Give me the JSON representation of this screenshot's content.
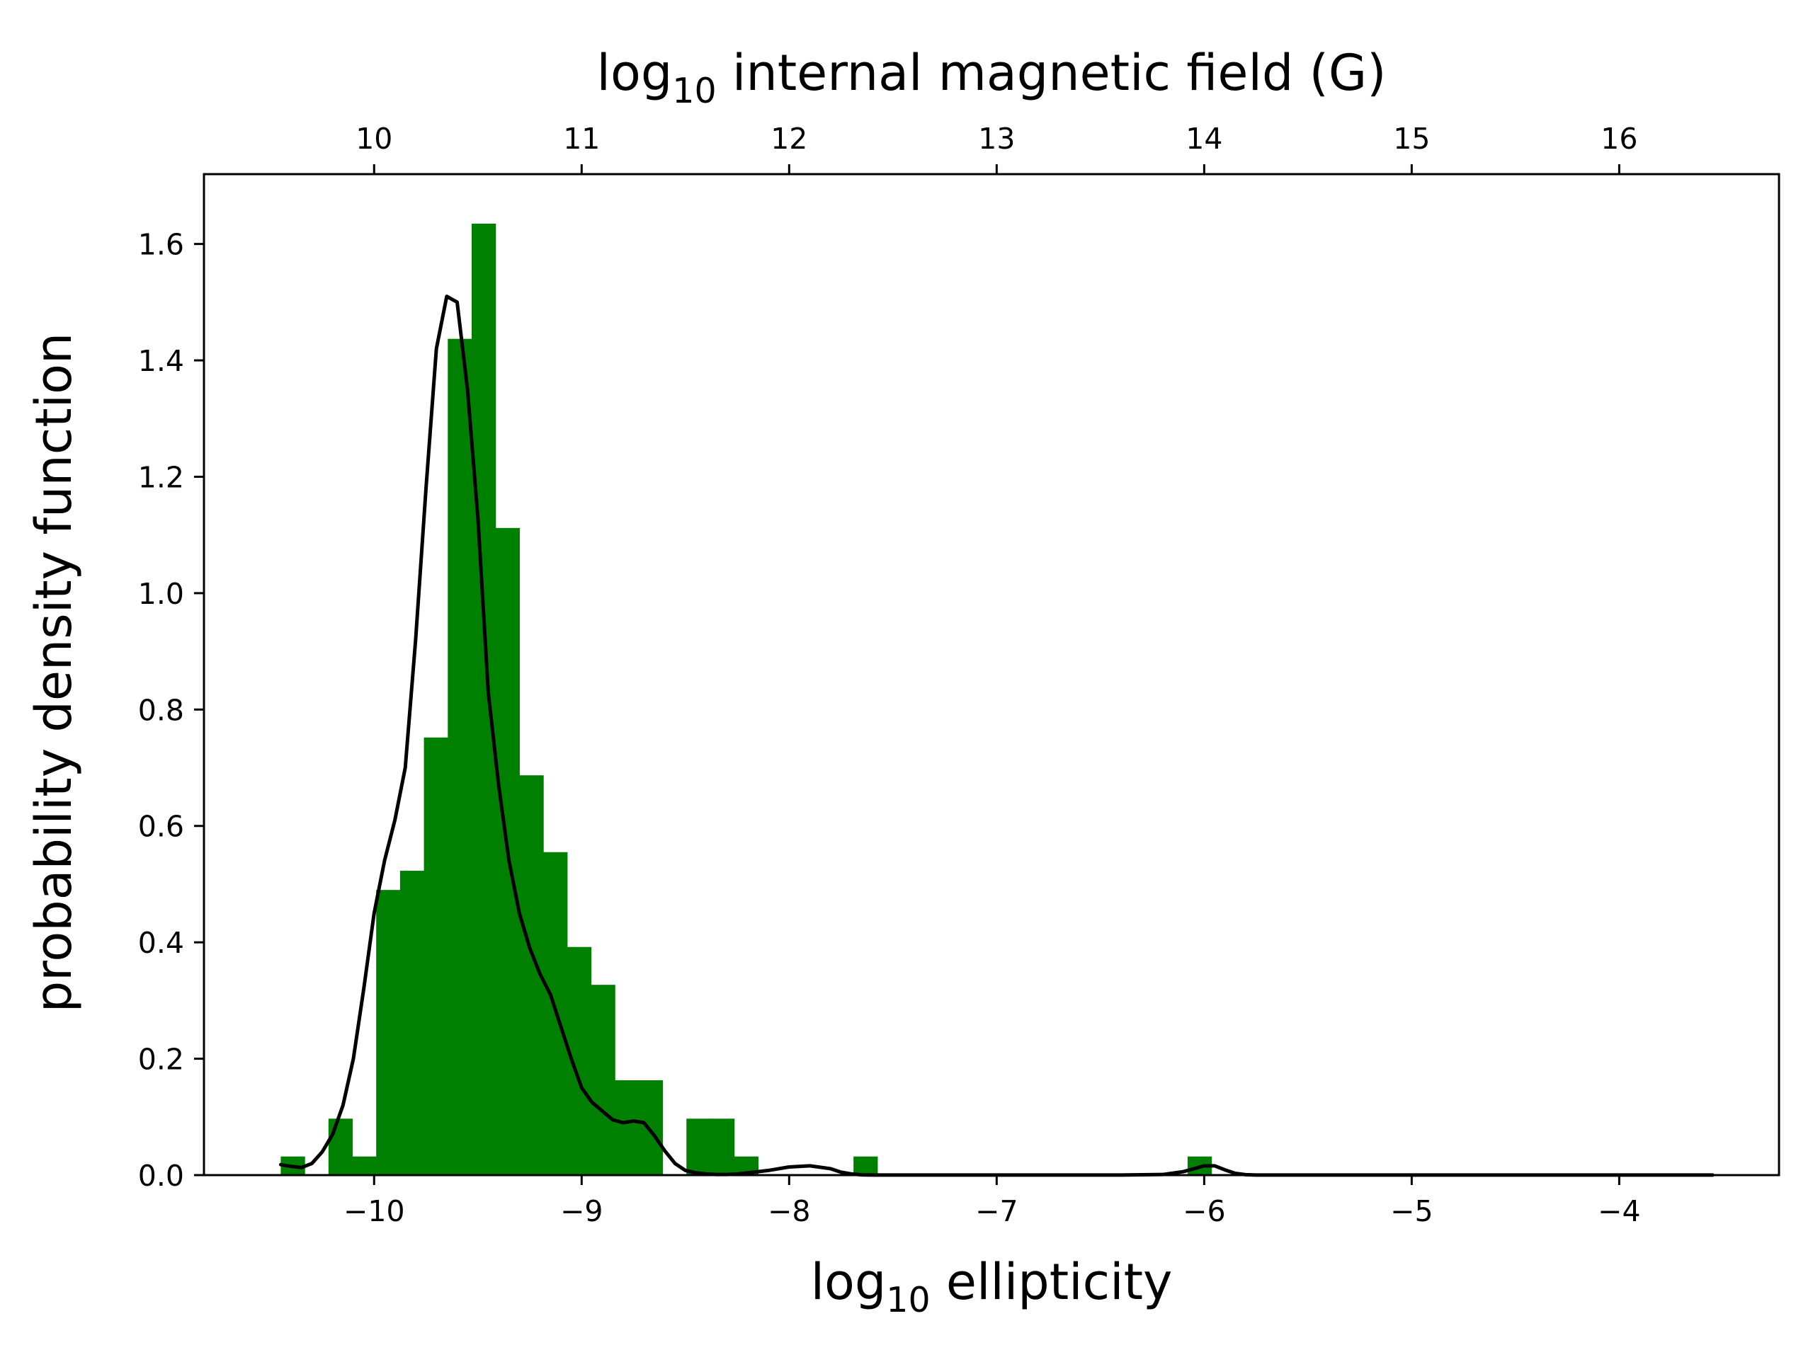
{
  "chart_data": {
    "type": "bar",
    "subtype": "histogram-with-kde",
    "xlabel": {
      "prefix": "log",
      "subscript": "10",
      "text": " ellipticity"
    },
    "ylabel": "probability density function",
    "x2label": {
      "prefix": "log",
      "subscript": "10",
      "text": " internal magnetic field (G)"
    },
    "xlim": [
      -10.82,
      -3.23
    ],
    "ylim": [
      0,
      1.72
    ],
    "x2_range": [
      9.18,
      16.77
    ],
    "x_ticks": [
      -10,
      -9,
      -8,
      -7,
      -6,
      -5,
      -4
    ],
    "x_tick_labels": [
      "−10",
      "−9",
      "−8",
      "−7",
      "−6",
      "−5",
      "−4"
    ],
    "x2_ticks": [
      10,
      11,
      12,
      13,
      14,
      15,
      16
    ],
    "x2_tick_labels": [
      "10",
      "11",
      "12",
      "13",
      "14",
      "15",
      "16"
    ],
    "y_ticks": [
      0.0,
      0.2,
      0.4,
      0.6,
      0.8,
      1.0,
      1.2,
      1.4,
      1.6
    ],
    "y_tick_labels": [
      "0.0",
      "0.2",
      "0.4",
      "0.6",
      "0.8",
      "1.0",
      "1.2",
      "1.4",
      "1.6"
    ],
    "grid": false,
    "legend": false,
    "colors": {
      "bars": "#008000",
      "kde_line": "#000000",
      "axes": "#000000"
    },
    "histogram": {
      "bin_width": 0.115,
      "bin_left_edges": [
        -10.45,
        -10.335,
        -10.22,
        -10.105,
        -9.99,
        -9.875,
        -9.76,
        -9.645,
        -9.53,
        -9.415,
        -9.3,
        -9.185,
        -9.07,
        -8.955,
        -8.84,
        -8.725,
        -8.61,
        -8.495,
        -8.38,
        -8.265,
        -8.15,
        -8.035,
        -7.92,
        -7.805,
        -7.69,
        -7.575,
        -7.46,
        -7.345,
        -7.23,
        -7.115,
        -7.0,
        -6.885,
        -6.77,
        -6.655,
        -6.54,
        -6.425,
        -6.31,
        -6.195,
        -6.08,
        -5.965,
        -5.85,
        -5.735,
        -5.62,
        -5.505,
        -5.39,
        -5.275,
        -5.16,
        -5.045,
        -4.93,
        -4.815,
        -4.7,
        -4.585,
        -4.47,
        -4.355,
        -4.24,
        -4.125,
        -4.01,
        -3.895,
        -3.78,
        -3.665
      ],
      "values": [
        0.032,
        0,
        0.097,
        0.032,
        0.49,
        0.523,
        0.752,
        1.437,
        1.635,
        1.112,
        0.687,
        0.555,
        0.392,
        0.327,
        0.163,
        0.163,
        0,
        0.097,
        0.097,
        0.032,
        0,
        0,
        0,
        0,
        0.032,
        0,
        0,
        0,
        0,
        0,
        0,
        0,
        0,
        0,
        0,
        0,
        0,
        0,
        0.032,
        0,
        0,
        0,
        0,
        0,
        0,
        0,
        0,
        0,
        0,
        0,
        0,
        0,
        0,
        0,
        0,
        0,
        0,
        0,
        0,
        0
      ]
    },
    "kde": {
      "x": [
        -10.45,
        -10.4,
        -10.35,
        -10.3,
        -10.25,
        -10.2,
        -10.15,
        -10.1,
        -10.05,
        -10.0,
        -9.95,
        -9.9,
        -9.85,
        -9.8,
        -9.75,
        -9.7,
        -9.65,
        -9.6,
        -9.55,
        -9.5,
        -9.47,
        -9.45,
        -9.4,
        -9.35,
        -9.3,
        -9.25,
        -9.2,
        -9.15,
        -9.1,
        -9.05,
        -9.0,
        -8.95,
        -8.9,
        -8.85,
        -8.8,
        -8.75,
        -8.7,
        -8.65,
        -8.6,
        -8.55,
        -8.5,
        -8.45,
        -8.4,
        -8.35,
        -8.3,
        -8.25,
        -8.2,
        -8.1,
        -8.0,
        -7.9,
        -7.8,
        -7.75,
        -7.7,
        -7.65,
        -7.6,
        -7.55,
        -7.5,
        -7.45,
        -7.4,
        -7.3,
        -7.2,
        -7.0,
        -6.8,
        -6.6,
        -6.4,
        -6.2,
        -6.1,
        -6.0,
        -5.95,
        -5.9,
        -5.85,
        -5.8,
        -5.75,
        -5.7,
        -5.65,
        -5.6,
        -5.5,
        -5.3,
        -5.0,
        -4.5,
        -4.0,
        -3.55
      ],
      "y": [
        0.018,
        0.015,
        0.013,
        0.02,
        0.04,
        0.07,
        0.12,
        0.2,
        0.32,
        0.45,
        0.54,
        0.61,
        0.7,
        0.92,
        1.18,
        1.42,
        1.51,
        1.5,
        1.35,
        1.13,
        0.95,
        0.83,
        0.67,
        0.54,
        0.45,
        0.39,
        0.345,
        0.31,
        0.255,
        0.2,
        0.15,
        0.125,
        0.11,
        0.095,
        0.09,
        0.093,
        0.09,
        0.068,
        0.042,
        0.02,
        0.008,
        0.004,
        0.002,
        0.001,
        0.001,
        0.002,
        0.004,
        0.008,
        0.014,
        0.016,
        0.011,
        0.005,
        0.002,
        0.0005,
        0.0002,
        0.0001,
        0.0001,
        0.0001,
        0.0001,
        0.0001,
        0.0001,
        0.0001,
        0.0001,
        0.0001,
        0.0001,
        0.001,
        0.006,
        0.016,
        0.016,
        0.009,
        0.003,
        0.0008,
        0.0002,
        0.0001,
        0.0001,
        0.0001,
        0.0001,
        0.0001,
        0.0001,
        0.0001,
        0.0001,
        0.0001
      ]
    }
  }
}
